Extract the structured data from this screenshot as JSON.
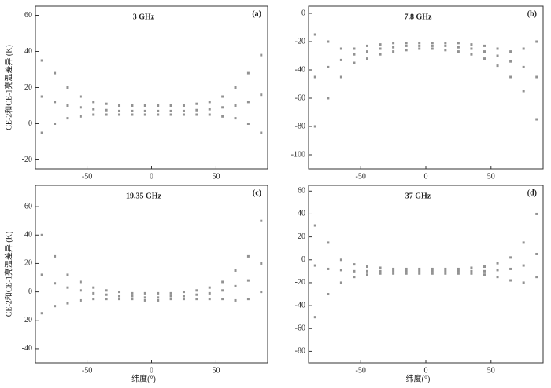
{
  "chart_data": [
    {
      "type": "scatter",
      "title": "3 GHz",
      "panel": "(a)",
      "ylabel": "CE-2和CE-1亮温差异 (K)",
      "color": "#777777",
      "xlim": [
        -90,
        90
      ],
      "ylim": [
        -25,
        65
      ],
      "xticks": [
        -50,
        0,
        50
      ],
      "yticks": [
        -20,
        0,
        20,
        40,
        60
      ],
      "x": [
        -85,
        -75,
        -65,
        -55,
        -45,
        -35,
        -25,
        -15,
        -5,
        5,
        15,
        25,
        35,
        45,
        55,
        65,
        75,
        85,
        -85,
        -75,
        -65,
        -55,
        -45,
        -35,
        -25,
        -15,
        -5,
        5,
        15,
        25,
        35,
        45,
        55,
        65,
        75,
        85,
        -85,
        -75,
        -65,
        -55,
        -45,
        -35,
        -25,
        -15,
        -5,
        5,
        15,
        25,
        35,
        45,
        55,
        65,
        75,
        85
      ],
      "y": [
        15,
        12,
        10,
        9,
        8,
        7.5,
        7,
        7,
        7,
        7,
        7,
        7,
        7.5,
        8,
        9,
        10,
        12,
        16,
        35,
        28,
        20,
        15,
        12,
        11,
        10,
        10,
        10,
        10,
        10,
        10,
        11,
        12,
        15,
        20,
        28,
        38,
        -5,
        0,
        3,
        4,
        5,
        5,
        5,
        5,
        5,
        5,
        5,
        5,
        5,
        5,
        4,
        3,
        0,
        -5
      ]
    },
    {
      "type": "scatter",
      "title": "7.8 GHz",
      "panel": "(b)",
      "color": "#777777",
      "xlim": [
        -90,
        90
      ],
      "ylim": [
        -110,
        5
      ],
      "xticks": [
        -50,
        0,
        50
      ],
      "yticks": [
        -100,
        -80,
        -60,
        -40,
        -20,
        0
      ],
      "x": [
        -85,
        -75,
        -65,
        -55,
        -45,
        -35,
        -25,
        -15,
        -5,
        5,
        15,
        25,
        35,
        45,
        55,
        65,
        75,
        85,
        -85,
        -75,
        -65,
        -55,
        -45,
        -35,
        -25,
        -15,
        -5,
        5,
        15,
        25,
        35,
        45,
        55,
        65,
        75,
        85,
        -85,
        -75,
        -65,
        -55,
        -45,
        -35,
        -25,
        -15,
        -5,
        5,
        15,
        25,
        35,
        45,
        55,
        65,
        75,
        85
      ],
      "y": [
        -45,
        -38,
        -33,
        -29,
        -27,
        -25,
        -24,
        -23,
        -23,
        -23,
        -23,
        -24,
        -25,
        -27,
        -30,
        -34,
        -38,
        -45,
        -15,
        -20,
        -25,
        -25,
        -23,
        -22,
        -21,
        -21,
        -21,
        -21,
        -21,
        -21,
        -22,
        -23,
        -25,
        -27,
        -25,
        -20,
        -80,
        -60,
        -45,
        -35,
        -32,
        -29,
        -27,
        -26,
        -25,
        -25,
        -26,
        -27,
        -29,
        -32,
        -37,
        -45,
        -55,
        -75
      ]
    },
    {
      "type": "scatter",
      "title": "19.35 GHz",
      "panel": "(c)",
      "ylabel": "CE-2和CE-1亮温差异 (K)",
      "xlabel": "纬度(°)",
      "color": "#777777",
      "xlim": [
        -90,
        90
      ],
      "ylim": [
        -50,
        75
      ],
      "xticks": [
        -50,
        0,
        50
      ],
      "yticks": [
        -40,
        -20,
        0,
        20,
        40,
        60
      ],
      "x": [
        -85,
        -75,
        -65,
        -55,
        -45,
        -35,
        -25,
        -15,
        -5,
        5,
        15,
        25,
        35,
        45,
        55,
        65,
        75,
        85,
        -85,
        -75,
        -65,
        -55,
        -45,
        -35,
        -25,
        -15,
        -5,
        5,
        15,
        25,
        35,
        45,
        55,
        65,
        75,
        85,
        -85,
        -75,
        -65,
        -55,
        -45,
        -35,
        -25,
        -15,
        -5,
        5,
        15,
        25,
        35,
        45,
        55,
        65,
        75,
        85
      ],
      "y": [
        12,
        6,
        3,
        1,
        -1,
        -2,
        -3,
        -3,
        -4,
        -4,
        -3,
        -3,
        -2,
        -1,
        1,
        4,
        8,
        20,
        40,
        25,
        12,
        7,
        3,
        1,
        0,
        -1,
        -1,
        -1,
        -1,
        0,
        1,
        3,
        7,
        15,
        25,
        50,
        -15,
        -10,
        -8,
        -6,
        -5,
        -5,
        -5,
        -5,
        -6,
        -6,
        -5,
        -5,
        -5,
        -5,
        -5,
        -6,
        -5,
        0
      ]
    },
    {
      "type": "scatter",
      "title": "37 GHz",
      "panel": "(d)",
      "xlabel": "纬度(°)",
      "color": "#777777",
      "xlim": [
        -90,
        90
      ],
      "ylim": [
        -90,
        65
      ],
      "xticks": [
        -50,
        0,
        50
      ],
      "yticks": [
        -80,
        -60,
        -40,
        -20,
        0,
        20,
        40,
        60
      ],
      "x": [
        -85,
        -75,
        -65,
        -55,
        -45,
        -35,
        -25,
        -15,
        -5,
        5,
        15,
        25,
        35,
        45,
        55,
        65,
        75,
        85,
        -85,
        -75,
        -65,
        -55,
        -45,
        -35,
        -25,
        -15,
        -5,
        5,
        15,
        25,
        35,
        45,
        55,
        65,
        75,
        85,
        -85,
        -75,
        -65,
        -55,
        -45,
        -35,
        -25,
        -15,
        -5,
        5,
        15,
        25,
        35,
        45,
        55,
        65,
        75,
        85
      ],
      "y": [
        -5,
        -8,
        -9,
        -10,
        -10,
        -10,
        -10,
        -10,
        -10,
        -10,
        -10,
        -10,
        -10,
        -10,
        -9,
        -8,
        -5,
        5,
        30,
        15,
        0,
        -4,
        -6,
        -7,
        -8,
        -8,
        -8,
        -8,
        -8,
        -8,
        -7,
        -6,
        -3,
        2,
        15,
        40,
        -50,
        -30,
        -20,
        -15,
        -13,
        -12,
        -12,
        -12,
        -12,
        -12,
        -12,
        -12,
        -12,
        -13,
        -15,
        -18,
        -20,
        -15
      ]
    }
  ]
}
